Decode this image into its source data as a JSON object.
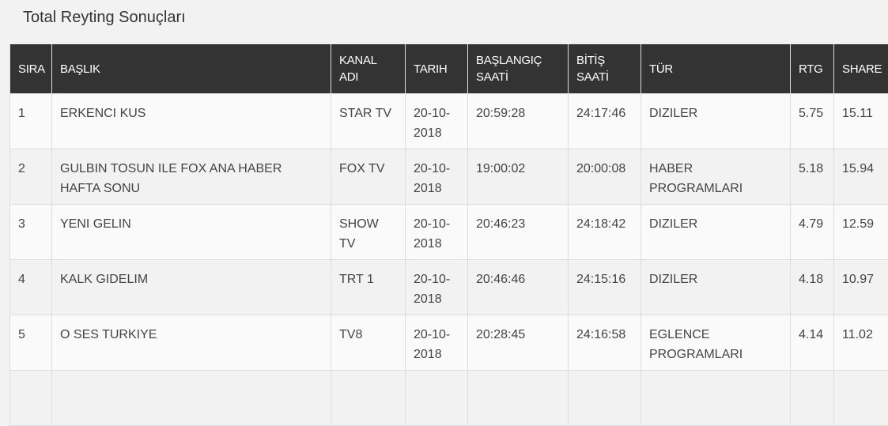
{
  "title": "Total Reyting Sonuçları",
  "columns": [
    "SIRA",
    "BAŞLIK",
    "KANAL ADI",
    "TARIH",
    "BAŞLANGIÇ SAATİ",
    "BİTİŞ SAATİ",
    "TÜR",
    "RTG",
    "SHARE"
  ],
  "rows": [
    [
      "1",
      "ERKENCI KUS",
      "STAR TV",
      "20-10-2018",
      "20:59:28",
      "24:17:46",
      "DIZILER",
      "5.75",
      "15.11"
    ],
    [
      "2",
      "GULBIN TOSUN ILE FOX ANA HABER HAFTA SONU",
      "FOX TV",
      "20-10-2018",
      "19:00:02",
      "20:00:08",
      "HABER PROGRAMLARI",
      "5.18",
      "15.94"
    ],
    [
      "3",
      "YENI GELIN",
      "SHOW TV",
      "20-10-2018",
      "20:46:23",
      "24:18:42",
      "DIZILER",
      "4.79",
      "12.59"
    ],
    [
      "4",
      "KALK GIDELIM",
      "TRT 1",
      "20-10-2018",
      "20:46:46",
      "24:15:16",
      "DIZILER",
      "4.18",
      "10.97"
    ],
    [
      "5",
      "O SES TURKIYE",
      "TV8",
      "20-10-2018",
      "20:28:45",
      "24:16:58",
      "EGLENCE PROGRAMLARI",
      "4.14",
      "11.02"
    ]
  ]
}
